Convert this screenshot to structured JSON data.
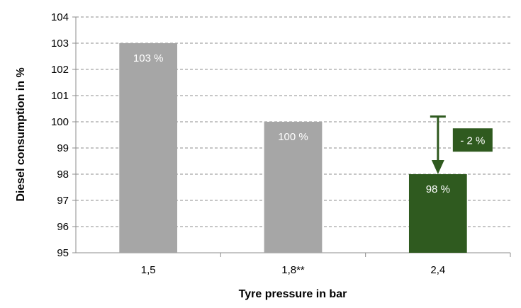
{
  "chart_data": {
    "type": "bar",
    "categories": [
      "1,5",
      "1,8**",
      "2,4"
    ],
    "values": [
      103,
      100,
      98
    ],
    "data_labels": [
      "103 %",
      "100 %",
      "98 %"
    ],
    "bar_colors": [
      "#a6a6a6",
      "#a6a6a6",
      "#2f5a1f"
    ],
    "xlabel": "Tyre pressure in bar",
    "ylabel": "Diesel consumption in %",
    "ylim": [
      95,
      104
    ],
    "yticks": [
      95,
      96,
      97,
      98,
      99,
      100,
      101,
      102,
      103,
      104
    ],
    "grid": true,
    "annotation": {
      "text": "- 2 %",
      "from_value": 100.2,
      "to_value": 98,
      "color": "#2f5a1f"
    }
  }
}
